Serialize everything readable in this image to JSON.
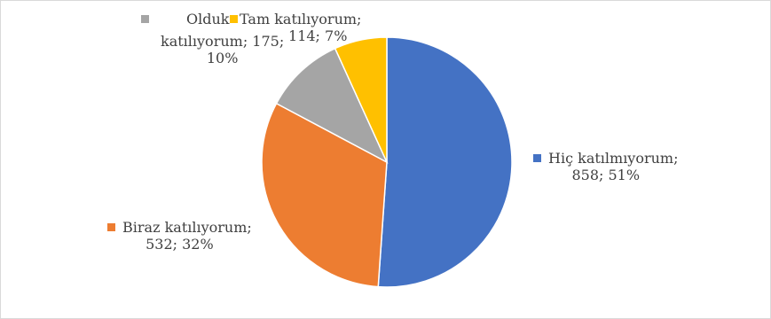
{
  "chart_data": {
    "type": "pie",
    "slices": [
      {
        "name": "Hiç katılmıyorum",
        "value": 858,
        "percent": "51%",
        "color": "#4472c4",
        "label_line1": "Hiç katılmıyorum;",
        "label_line2": "858; 51%"
      },
      {
        "name": "Biraz katılıyorum",
        "value": 532,
        "percent": "32%",
        "color": "#ed7d31",
        "label_line1": "Biraz katılıyorum;",
        "label_line2": "532; 32%"
      },
      {
        "name": "Oldukça katılıyorum",
        "value": 175,
        "percent": "10%",
        "color": "#a5a5a5",
        "label_line1": "Olduk",
        "label_line2": "katılıyorum; 175;",
        "label_line3": "10%"
      },
      {
        "name": "Tam katılıyorum",
        "value": 114,
        "percent": "7%",
        "color": "#ffc000",
        "label_line1": "Tam katılıyorum;",
        "label_line2": "114; 7%"
      }
    ],
    "start_angle_deg": 0,
    "direction": "clockwise",
    "legend": "none (data labels)"
  }
}
